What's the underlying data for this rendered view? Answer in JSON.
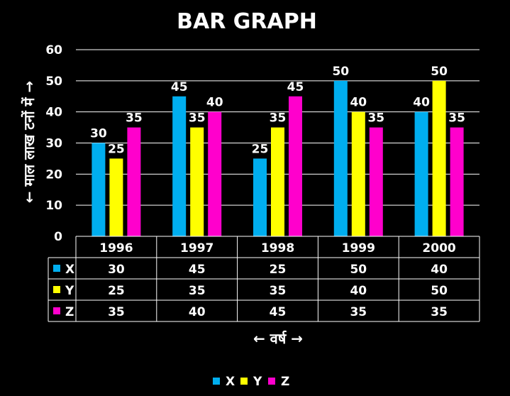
{
  "chart_data": {
    "type": "bar",
    "title": "BAR GRAPH",
    "categories": [
      "1996",
      "1997",
      "1998",
      "1999",
      "2000"
    ],
    "series": [
      {
        "name": "X",
        "color": "#00aeef",
        "values": [
          30,
          45,
          25,
          50,
          40
        ]
      },
      {
        "name": "Y",
        "color": "#ffff00",
        "values": [
          25,
          35,
          35,
          40,
          50
        ]
      },
      {
        "name": "Z",
        "color": "#ff00cc",
        "values": [
          35,
          40,
          45,
          35,
          35
        ]
      }
    ],
    "xlabel": "← वर्ष →",
    "ylabel": "← माल लाख टनों में →",
    "ylim": [
      0,
      60
    ],
    "yticks": [
      0,
      10,
      20,
      30,
      40,
      50,
      60
    ],
    "grid": true,
    "data_table": true,
    "legend_position": "bottom-center"
  }
}
